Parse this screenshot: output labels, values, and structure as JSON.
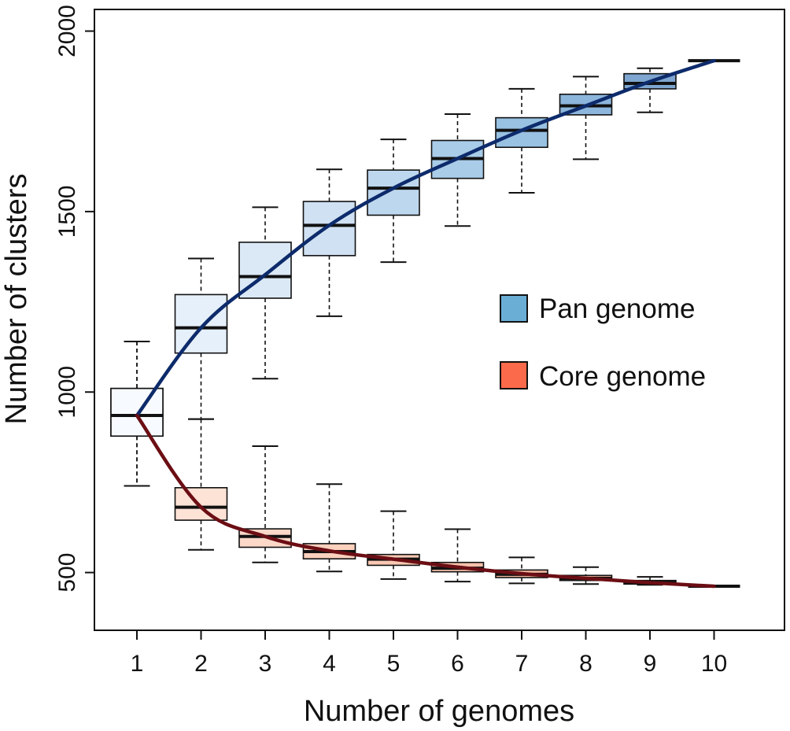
{
  "chart_data": {
    "type": "boxplot",
    "xlabel": "Number of genomes",
    "ylabel": "Number of clusters",
    "categories": [
      "1",
      "2",
      "3",
      "4",
      "5",
      "6",
      "7",
      "8",
      "9",
      "10"
    ],
    "ylim": [
      340,
      2060
    ],
    "yticks": [
      500,
      1000,
      1500,
      2000
    ],
    "grid": false,
    "legend": {
      "position": "center-right",
      "entries": [
        {
          "label": "Pan genome",
          "color": "#6aaed6"
        },
        {
          "label": "Core genome",
          "color": "#fb6a4a"
        }
      ]
    },
    "series": [
      {
        "name": "Pan genome",
        "line_color": "#0d2b6b",
        "box_colors": [
          "#f7fbff",
          "#e6f0fa",
          "#dbe9f6",
          "#cfe1f2",
          "#bdd7ee",
          "#a9cce8",
          "#98c1e2",
          "#8cb6dc",
          "#7ea6d0",
          "#7a9fcc"
        ],
        "boxes": [
          {
            "min": 740,
            "q1": 878,
            "median": 935,
            "q3": 1010,
            "max": 1140
          },
          {
            "min": 925,
            "q1": 1108,
            "median": 1178,
            "q3": 1270,
            "max": 1370
          },
          {
            "min": 1037,
            "q1": 1260,
            "median": 1320,
            "q3": 1415,
            "max": 1512
          },
          {
            "min": 1210,
            "q1": 1378,
            "median": 1462,
            "q3": 1528,
            "max": 1617
          },
          {
            "min": 1360,
            "q1": 1490,
            "median": 1565,
            "q3": 1615,
            "max": 1700
          },
          {
            "min": 1460,
            "q1": 1592,
            "median": 1647,
            "q3": 1697,
            "max": 1770
          },
          {
            "min": 1552,
            "q1": 1678,
            "median": 1725,
            "q3": 1760,
            "max": 1840
          },
          {
            "min": 1645,
            "q1": 1768,
            "median": 1793,
            "q3": 1825,
            "max": 1874
          },
          {
            "min": 1775,
            "q1": 1840,
            "median": 1855,
            "q3": 1882,
            "max": 1897
          },
          {
            "min": 1918,
            "q1": 1918,
            "median": 1918,
            "q3": 1918,
            "max": 1918
          }
        ],
        "curve": [
          935,
          1178,
          1325,
          1462,
          1565,
          1647,
          1725,
          1793,
          1860,
          1918
        ]
      },
      {
        "name": "Core genome",
        "line_color": "#6b0e14",
        "box_colors": [
          "#fff5f0",
          "#fde2d6",
          "#fcd8c8",
          "#fbd0bd",
          "#f9c8b3",
          "#f6c0aa",
          "#f3b8a1",
          "#f0b098",
          "#eda890",
          "#ea9f88"
        ],
        "boxes": [
          {
            "min": 740,
            "q1": 878,
            "median": 935,
            "q3": 1010,
            "max": 1140
          },
          {
            "min": 563,
            "q1": 645,
            "median": 681,
            "q3": 735,
            "max": 925
          },
          {
            "min": 528,
            "q1": 570,
            "median": 600,
            "q3": 621,
            "max": 850
          },
          {
            "min": 503,
            "q1": 538,
            "median": 558,
            "q3": 580,
            "max": 745
          },
          {
            "min": 482,
            "q1": 520,
            "median": 537,
            "q3": 550,
            "max": 670
          },
          {
            "min": 475,
            "q1": 502,
            "median": 512,
            "q3": 528,
            "max": 620
          },
          {
            "min": 470,
            "q1": 486,
            "median": 495,
            "q3": 507,
            "max": 542
          },
          {
            "min": 468,
            "q1": 478,
            "median": 484,
            "q3": 492,
            "max": 515
          },
          {
            "min": 466,
            "q1": 468,
            "median": 472,
            "q3": 478,
            "max": 488
          },
          {
            "min": 462,
            "q1": 462,
            "median": 462,
            "q3": 462,
            "max": 462
          }
        ],
        "curve": [
          935,
          681,
          600,
          560,
          537,
          515,
          497,
          484,
          472,
          462
        ]
      }
    ]
  }
}
